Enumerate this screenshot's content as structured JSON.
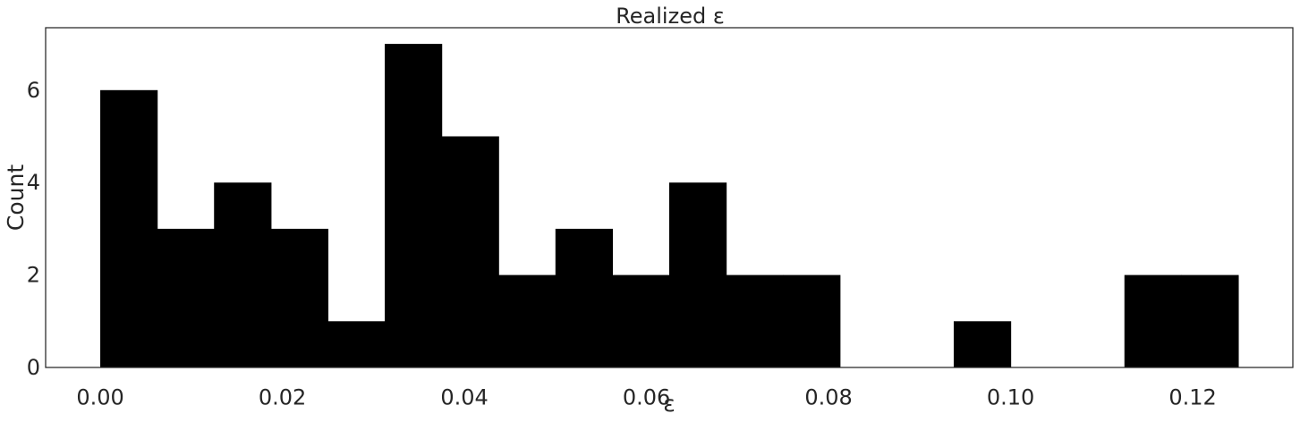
{
  "chart_data": {
    "type": "bar",
    "title": "Realized ε",
    "xlabel": "ε",
    "ylabel": "Count",
    "bin_width": 0.00625,
    "bin_starts": [
      0.0,
      0.00625,
      0.0125,
      0.01875,
      0.025,
      0.03125,
      0.0375,
      0.04375,
      0.05,
      0.05625,
      0.0625,
      0.06875,
      0.075,
      0.08125,
      0.0875,
      0.09375,
      0.1,
      0.10625,
      0.1125,
      0.11875
    ],
    "values": [
      6,
      3,
      4,
      3,
      1,
      7,
      5,
      2,
      3,
      2,
      4,
      2,
      2,
      0,
      0,
      1,
      0,
      0,
      2,
      2
    ],
    "xlim": [
      -0.006,
      0.131
    ],
    "ylim": [
      0,
      7.35
    ],
    "x_ticks": [
      "0.00",
      "0.02",
      "0.04",
      "0.06",
      "0.08",
      "0.10",
      "0.12"
    ],
    "x_tick_values": [
      0.0,
      0.02,
      0.04,
      0.06,
      0.08,
      0.1,
      0.12
    ],
    "y_ticks": [
      "0",
      "2",
      "4",
      "6"
    ],
    "y_tick_values": [
      0,
      2,
      4,
      6
    ],
    "bar_color": "#000000",
    "grid": false
  }
}
